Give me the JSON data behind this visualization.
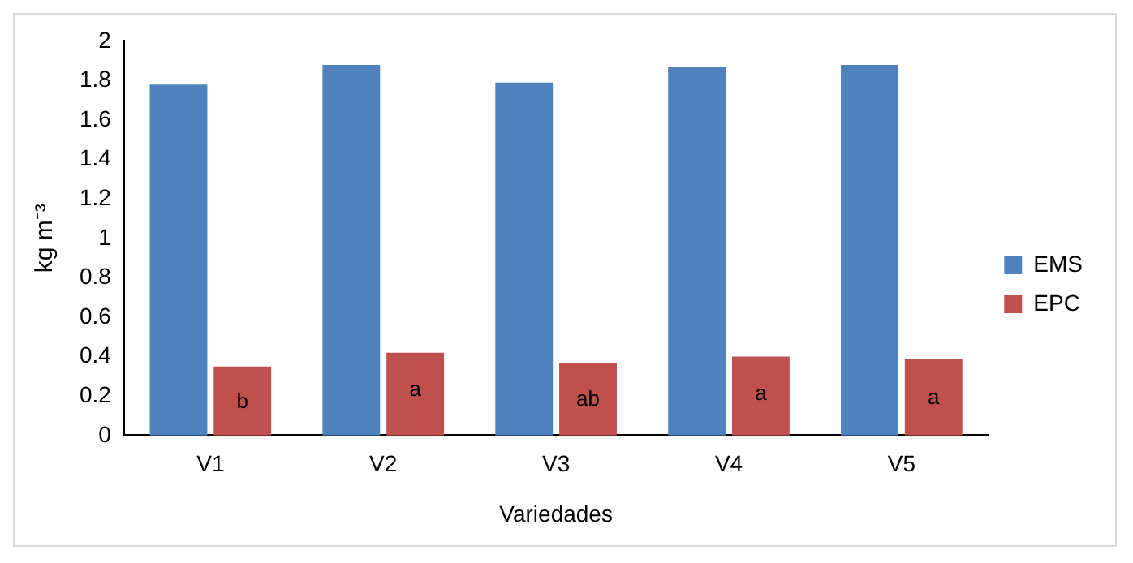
{
  "chart_data": {
    "type": "bar",
    "xlabel": "Variedades",
    "ylabel": "kg m⁻³",
    "categories": [
      "V1",
      "V2",
      "V3",
      "V4",
      "V5"
    ],
    "series": [
      {
        "name": "EMS",
        "color": "#4f81bd",
        "values": [
          1.78,
          1.88,
          1.79,
          1.87,
          1.88
        ]
      },
      {
        "name": "EPC",
        "color": "#c0504d",
        "values": [
          0.35,
          0.42,
          0.37,
          0.4,
          0.39
        ]
      }
    ],
    "ylim": [
      0,
      2
    ],
    "yticks": [
      0,
      0.2,
      0.4,
      0.6,
      0.8,
      1,
      1.2,
      1.4,
      1.6,
      1.8,
      2
    ],
    "grid": false,
    "legend": "right",
    "annotations": [
      {
        "text": "b",
        "x": "V1",
        "y": 0.17
      },
      {
        "text": "a",
        "x": "V2",
        "y": 0.23
      },
      {
        "text": "ab",
        "x": "V3",
        "y": 0.18
      },
      {
        "text": "a",
        "x": "V4",
        "y": 0.21
      },
      {
        "text": "a",
        "x": "V5",
        "y": 0.19
      }
    ]
  }
}
